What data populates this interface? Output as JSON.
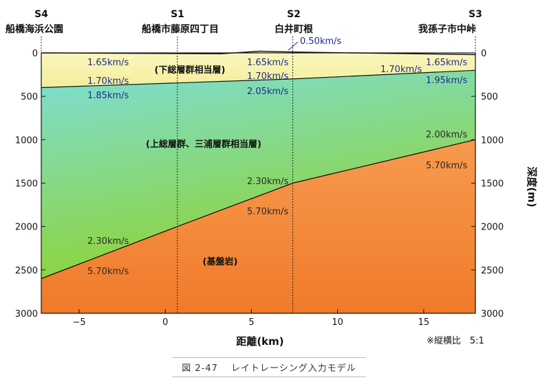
{
  "figure": {
    "stations": [
      {
        "code": "S4",
        "name": "船橋海浜公園",
        "x_km": -7.2
      },
      {
        "code": "S1",
        "name": "船橋市藤原四丁目",
        "x_km": 0.7
      },
      {
        "code": "S2",
        "name": "白井町根",
        "x_km": 7.4
      },
      {
        "code": "S3",
        "name": "我孫子市中峠",
        "x_km": 18.0
      }
    ],
    "x_axis": {
      "label": "距離(km)",
      "range": [
        -7.2,
        18.0
      ],
      "ticks": [
        "−5",
        "0",
        "5",
        "10",
        "15"
      ],
      "tick_values": [
        -5,
        0,
        5,
        10,
        15
      ]
    },
    "y_axis": {
      "label": "深度(m)",
      "range": [
        0,
        3000
      ],
      "ticks": [
        "0",
        "500",
        "1000",
        "1500",
        "2000",
        "2500",
        "3000"
      ],
      "tick_values": [
        0,
        500,
        1000,
        1500,
        2000,
        2500,
        3000
      ]
    },
    "interfaces": {
      "surface": [
        [
          -7.2,
          0
        ],
        [
          3.2,
          10
        ],
        [
          5.5,
          -20
        ],
        [
          7.4,
          -10
        ],
        [
          18.0,
          20
        ]
      ],
      "shimosa_base": [
        [
          -7.2,
          400
        ],
        [
          7.4,
          300
        ],
        [
          18.0,
          200
        ]
      ],
      "basement_top": [
        [
          -7.2,
          2600
        ],
        [
          0.7,
          2000
        ],
        [
          7.4,
          1500
        ],
        [
          18.0,
          1000
        ]
      ]
    },
    "layer_labels": [
      "(下総層群相当層)",
      "(上総層群、三浦層群相当層)",
      "(基盤岩)"
    ],
    "velocity_labels": [
      "0.50km/s",
      "1.65km/s",
      "1.65km/s",
      "1.65km/s",
      "1.70km/s",
      "1.70km/s",
      "1.70km/s",
      "1.85km/s",
      "2.05km/s",
      "1.95km/s",
      "2.30km/s",
      "2.30km/s",
      "2.00km/s",
      "5.70km/s",
      "5.70km/s",
      "5.70km/s"
    ],
    "note": "※縦横比　5:1",
    "colors": {
      "shimosa_top": "#fbf7bf",
      "shimosa_bottom": "#f3ee9a",
      "kazusa_top": "#7dded6",
      "kazusa_bottom": "#8fd332",
      "basement_top": "#f79a4e",
      "basement_bottom": "#f07a2a",
      "velocity_text": "#1d2b8f"
    }
  },
  "caption": "図 2-47　 レイトレーシング入力モデル"
}
